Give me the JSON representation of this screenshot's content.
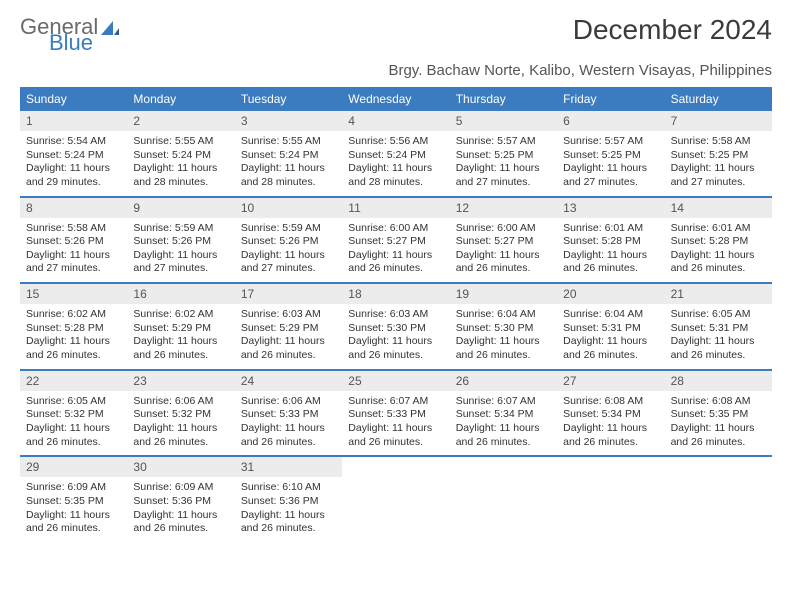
{
  "brand": {
    "part1": "General",
    "part2": "Blue"
  },
  "title": "December 2024",
  "subtitle": "Brgy. Bachaw Norte, Kalibo, Western Visayas, Philippines",
  "colors": {
    "header_bg": "#3a7cbf",
    "header_text": "#ffffff",
    "daynum_bg": "#ececec",
    "daynum_text": "#555555",
    "body_text": "#333333",
    "week_border": "#3a7cbf",
    "page_bg": "#ffffff"
  },
  "weekdays": [
    "Sunday",
    "Monday",
    "Tuesday",
    "Wednesday",
    "Thursday",
    "Friday",
    "Saturday"
  ],
  "weeks": [
    [
      {
        "n": "1",
        "sunrise": "5:54 AM",
        "sunset": "5:24 PM",
        "daylight": "11 hours and 29 minutes."
      },
      {
        "n": "2",
        "sunrise": "5:55 AM",
        "sunset": "5:24 PM",
        "daylight": "11 hours and 28 minutes."
      },
      {
        "n": "3",
        "sunrise": "5:55 AM",
        "sunset": "5:24 PM",
        "daylight": "11 hours and 28 minutes."
      },
      {
        "n": "4",
        "sunrise": "5:56 AM",
        "sunset": "5:24 PM",
        "daylight": "11 hours and 28 minutes."
      },
      {
        "n": "5",
        "sunrise": "5:57 AM",
        "sunset": "5:25 PM",
        "daylight": "11 hours and 27 minutes."
      },
      {
        "n": "6",
        "sunrise": "5:57 AM",
        "sunset": "5:25 PM",
        "daylight": "11 hours and 27 minutes."
      },
      {
        "n": "7",
        "sunrise": "5:58 AM",
        "sunset": "5:25 PM",
        "daylight": "11 hours and 27 minutes."
      }
    ],
    [
      {
        "n": "8",
        "sunrise": "5:58 AM",
        "sunset": "5:26 PM",
        "daylight": "11 hours and 27 minutes."
      },
      {
        "n": "9",
        "sunrise": "5:59 AM",
        "sunset": "5:26 PM",
        "daylight": "11 hours and 27 minutes."
      },
      {
        "n": "10",
        "sunrise": "5:59 AM",
        "sunset": "5:26 PM",
        "daylight": "11 hours and 27 minutes."
      },
      {
        "n": "11",
        "sunrise": "6:00 AM",
        "sunset": "5:27 PM",
        "daylight": "11 hours and 26 minutes."
      },
      {
        "n": "12",
        "sunrise": "6:00 AM",
        "sunset": "5:27 PM",
        "daylight": "11 hours and 26 minutes."
      },
      {
        "n": "13",
        "sunrise": "6:01 AM",
        "sunset": "5:28 PM",
        "daylight": "11 hours and 26 minutes."
      },
      {
        "n": "14",
        "sunrise": "6:01 AM",
        "sunset": "5:28 PM",
        "daylight": "11 hours and 26 minutes."
      }
    ],
    [
      {
        "n": "15",
        "sunrise": "6:02 AM",
        "sunset": "5:28 PM",
        "daylight": "11 hours and 26 minutes."
      },
      {
        "n": "16",
        "sunrise": "6:02 AM",
        "sunset": "5:29 PM",
        "daylight": "11 hours and 26 minutes."
      },
      {
        "n": "17",
        "sunrise": "6:03 AM",
        "sunset": "5:29 PM",
        "daylight": "11 hours and 26 minutes."
      },
      {
        "n": "18",
        "sunrise": "6:03 AM",
        "sunset": "5:30 PM",
        "daylight": "11 hours and 26 minutes."
      },
      {
        "n": "19",
        "sunrise": "6:04 AM",
        "sunset": "5:30 PM",
        "daylight": "11 hours and 26 minutes."
      },
      {
        "n": "20",
        "sunrise": "6:04 AM",
        "sunset": "5:31 PM",
        "daylight": "11 hours and 26 minutes."
      },
      {
        "n": "21",
        "sunrise": "6:05 AM",
        "sunset": "5:31 PM",
        "daylight": "11 hours and 26 minutes."
      }
    ],
    [
      {
        "n": "22",
        "sunrise": "6:05 AM",
        "sunset": "5:32 PM",
        "daylight": "11 hours and 26 minutes."
      },
      {
        "n": "23",
        "sunrise": "6:06 AM",
        "sunset": "5:32 PM",
        "daylight": "11 hours and 26 minutes."
      },
      {
        "n": "24",
        "sunrise": "6:06 AM",
        "sunset": "5:33 PM",
        "daylight": "11 hours and 26 minutes."
      },
      {
        "n": "25",
        "sunrise": "6:07 AM",
        "sunset": "5:33 PM",
        "daylight": "11 hours and 26 minutes."
      },
      {
        "n": "26",
        "sunrise": "6:07 AM",
        "sunset": "5:34 PM",
        "daylight": "11 hours and 26 minutes."
      },
      {
        "n": "27",
        "sunrise": "6:08 AM",
        "sunset": "5:34 PM",
        "daylight": "11 hours and 26 minutes."
      },
      {
        "n": "28",
        "sunrise": "6:08 AM",
        "sunset": "5:35 PM",
        "daylight": "11 hours and 26 minutes."
      }
    ],
    [
      {
        "n": "29",
        "sunrise": "6:09 AM",
        "sunset": "5:35 PM",
        "daylight": "11 hours and 26 minutes."
      },
      {
        "n": "30",
        "sunrise": "6:09 AM",
        "sunset": "5:36 PM",
        "daylight": "11 hours and 26 minutes."
      },
      {
        "n": "31",
        "sunrise": "6:10 AM",
        "sunset": "5:36 PM",
        "daylight": "11 hours and 26 minutes."
      },
      null,
      null,
      null,
      null
    ]
  ],
  "labels": {
    "sunrise": "Sunrise:",
    "sunset": "Sunset:",
    "daylight": "Daylight:"
  }
}
